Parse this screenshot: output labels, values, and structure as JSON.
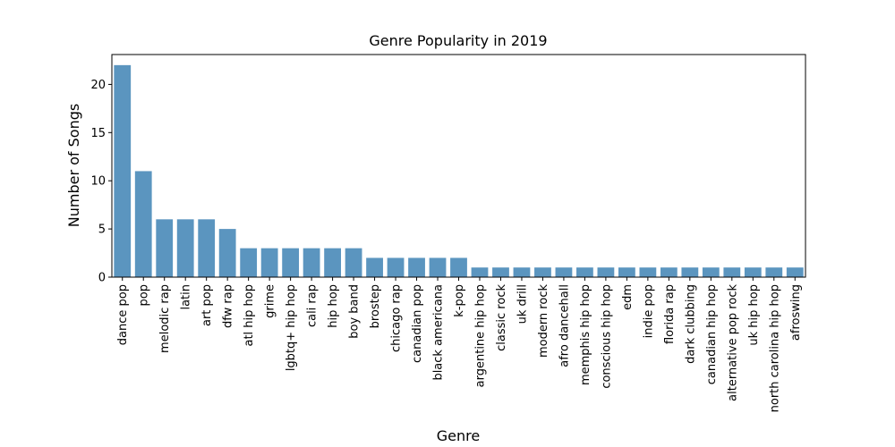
{
  "chart_data": {
    "type": "bar",
    "title": "Genre Popularity in 2019",
    "xlabel": "Genre",
    "ylabel": "Number of Songs",
    "categories": [
      "dance pop",
      "pop",
      "melodic rap",
      "latin",
      "art pop",
      "dfw rap",
      "atl hip hop",
      "grime",
      "lgbtq+ hip hop",
      "cali rap",
      "hip hop",
      "boy band",
      "brostep",
      "chicago rap",
      "canadian pop",
      "black americana",
      "k-pop",
      "argentine hip hop",
      "classic rock",
      "uk drill",
      "modern rock",
      "afro dancehall",
      "memphis hip hop",
      "conscious hip hop",
      "edm",
      "indie pop",
      "florida rap",
      "dark clubbing",
      "canadian hip hop",
      "alternative pop rock",
      "uk hip hop",
      "north carolina hip hop",
      "afroswing"
    ],
    "values": [
      22,
      11,
      6,
      6,
      6,
      5,
      3,
      3,
      3,
      3,
      3,
      3,
      2,
      2,
      2,
      2,
      2,
      1,
      1,
      1,
      1,
      1,
      1,
      1,
      1,
      1,
      1,
      1,
      1,
      1,
      1,
      1,
      1
    ],
    "ylim": [
      0,
      23.1
    ],
    "yticks": [
      0,
      5,
      10,
      15,
      20
    ],
    "grid": false,
    "legend": "none",
    "bar_color": "#5b95bf"
  }
}
